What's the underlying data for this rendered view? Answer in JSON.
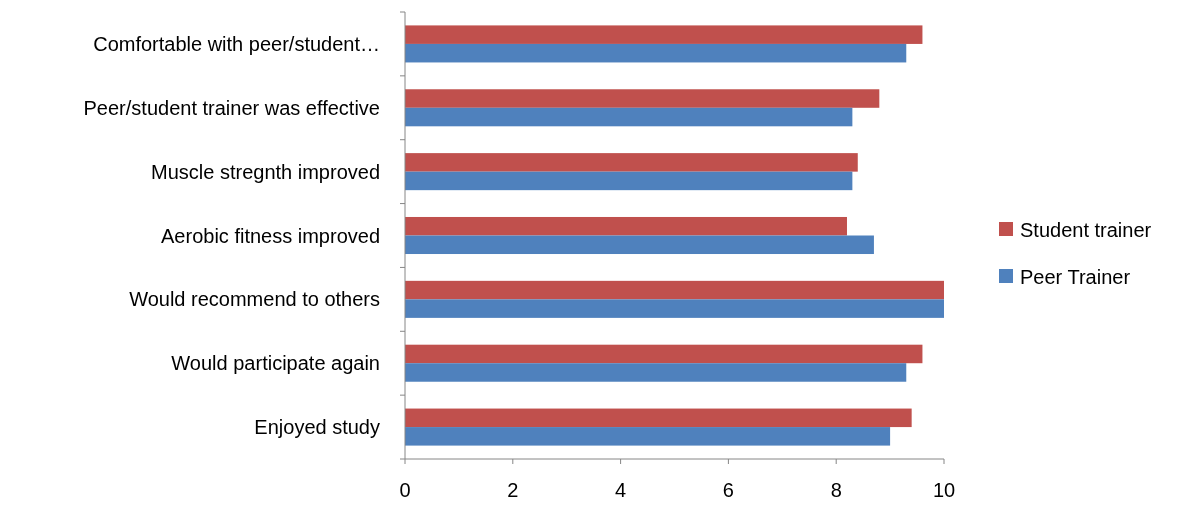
{
  "chart_data": {
    "type": "bar",
    "orientation": "horizontal",
    "categories": [
      "Comfortable with peer/student…",
      "Peer/student trainer was effective",
      "Muscle stregnth improved",
      "Aerobic fitness improved",
      "Would recommend to others",
      "Would participate again",
      "Enjoyed study"
    ],
    "series": [
      {
        "name": "Student trainer",
        "color": "#c0504d",
        "values": [
          9.6,
          8.8,
          8.4,
          8.2,
          10,
          9.6,
          9.4
        ]
      },
      {
        "name": "Peer Trainer",
        "color": "#4f81bd",
        "values": [
          9.3,
          8.3,
          8.3,
          8.7,
          10,
          9.3,
          9.0
        ]
      }
    ],
    "xlim": [
      0,
      10
    ],
    "xticks": [
      0,
      2,
      4,
      6,
      8,
      10
    ],
    "grid": false,
    "legend": "right"
  }
}
